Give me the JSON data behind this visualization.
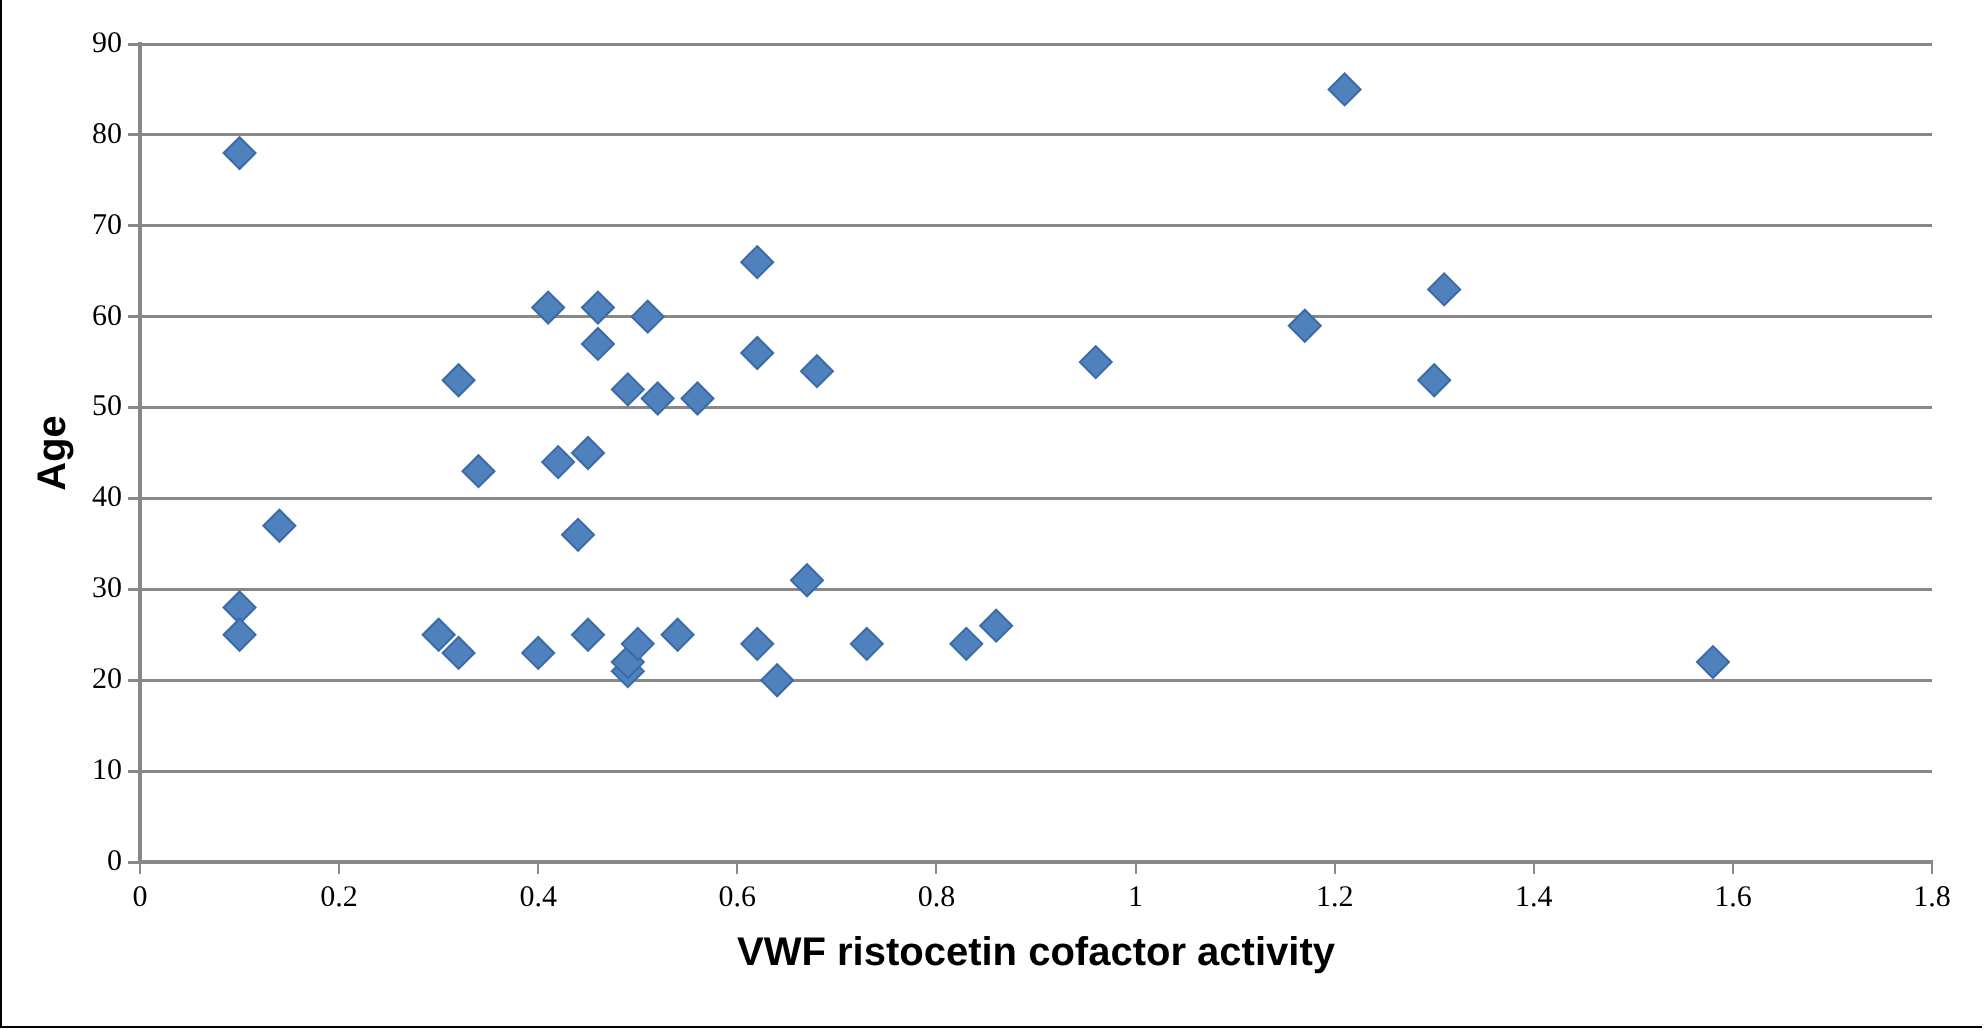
{
  "chart_data": {
    "type": "scatter",
    "xlabel": "VWF ristocetin cofactor activity",
    "ylabel": "Age",
    "x": [
      0.1,
      0.1,
      0.1,
      0.14,
      0.3,
      0.32,
      0.32,
      0.34,
      0.4,
      0.41,
      0.42,
      0.44,
      0.45,
      0.45,
      0.46,
      0.46,
      0.49,
      0.49,
      0.49,
      0.5,
      0.51,
      0.52,
      0.54,
      0.56,
      0.62,
      0.62,
      0.62,
      0.64,
      0.67,
      0.68,
      0.73,
      0.83,
      0.86,
      0.96,
      1.17,
      1.21,
      1.3,
      1.31,
      1.58
    ],
    "values": [
      78,
      28,
      25,
      37,
      25,
      23,
      53,
      43,
      23,
      61,
      44,
      36,
      45,
      25,
      61,
      57,
      52,
      21,
      22,
      24,
      60,
      51,
      25,
      51,
      66,
      56,
      24,
      20,
      31,
      54,
      24,
      24,
      26,
      55,
      59,
      85,
      53,
      63,
      22
    ],
    "color": "#4f81bd",
    "marker": "diamond",
    "xlim": [
      0,
      1.8
    ],
    "xticks": [
      0,
      0.2,
      0.4,
      0.6,
      0.8,
      1,
      1.2,
      1.4,
      1.6,
      1.8
    ],
    "ylim": [
      0,
      90
    ],
    "yticks": [
      0,
      10,
      20,
      30,
      40,
      50,
      60,
      70,
      80,
      90
    ],
    "grid": "y",
    "legend": false
  }
}
